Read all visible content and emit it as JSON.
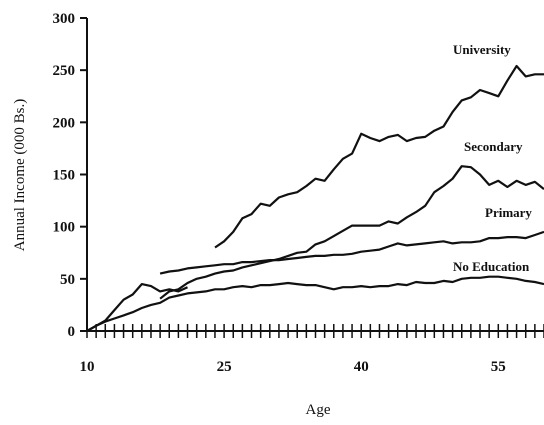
{
  "chart_data": {
    "type": "line",
    "title": "",
    "xlabel": "Age",
    "ylabel": "Annual Income  (000 Bs.)",
    "xlim": [
      10,
      60
    ],
    "ylim": [
      0,
      300
    ],
    "x_ticks": [
      10,
      25,
      40,
      55
    ],
    "y_ticks": [
      0,
      50,
      100,
      150,
      200,
      250,
      300
    ],
    "x_tick_labels": [
      "10",
      "25",
      "40",
      "55"
    ],
    "y_tick_labels": [
      "0",
      "50",
      "100",
      "150",
      "200",
      "250",
      "300"
    ],
    "grid": false,
    "legend": "none",
    "line_color": "#111111",
    "series": [
      {
        "name": "University",
        "x": [
          24,
          25,
          26,
          27,
          28,
          29,
          30,
          31,
          32,
          33,
          34,
          35,
          36,
          37,
          38,
          39,
          40,
          41,
          42,
          43,
          44,
          45,
          46,
          47,
          48,
          49,
          50,
          51,
          52,
          53,
          54,
          55,
          56,
          57,
          58,
          59,
          60
        ],
        "values": [
          80,
          86,
          95,
          108,
          112,
          122,
          120,
          128,
          131,
          133,
          139,
          146,
          144,
          155,
          165,
          170,
          189,
          185,
          182,
          186,
          188,
          182,
          185,
          186,
          192,
          196,
          210,
          221,
          224,
          231,
          228,
          225,
          240,
          254,
          244,
          246,
          246
        ]
      },
      {
        "name": "Secondary",
        "x": [
          18,
          19,
          20,
          21,
          22,
          23,
          24,
          25,
          26,
          27,
          28,
          29,
          30,
          31,
          32,
          33,
          34,
          35,
          36,
          37,
          38,
          39,
          40,
          41,
          42,
          43,
          44,
          45,
          46,
          47,
          48,
          49,
          50,
          51,
          52,
          53,
          54,
          55,
          56,
          57,
          58,
          59,
          60
        ],
        "values": [
          31,
          38,
          40,
          46,
          50,
          52,
          55,
          57,
          58,
          61,
          63,
          65,
          67,
          69,
          72,
          75,
          76,
          83,
          86,
          91,
          96,
          101,
          101,
          101,
          101,
          105,
          103,
          109,
          114,
          120,
          133,
          139,
          146,
          158,
          157,
          150,
          140,
          144,
          138,
          144,
          140,
          143,
          136
        ]
      },
      {
        "name": "Primary",
        "x": [
          18,
          19,
          20,
          21,
          22,
          23,
          24,
          25,
          26,
          27,
          28,
          29,
          30,
          31,
          32,
          33,
          34,
          35,
          36,
          37,
          38,
          39,
          40,
          41,
          42,
          43,
          44,
          45,
          46,
          47,
          48,
          49,
          50,
          51,
          52,
          53,
          54,
          55,
          56,
          57,
          58,
          59,
          60
        ],
        "values": [
          55,
          57,
          58,
          60,
          61,
          62,
          63,
          64,
          64,
          66,
          66,
          67,
          68,
          68,
          69,
          70,
          71,
          72,
          72,
          73,
          73,
          74,
          76,
          77,
          78,
          81,
          84,
          82,
          83,
          84,
          85,
          86,
          84,
          85,
          85,
          86,
          89,
          89,
          90,
          90,
          89,
          92,
          95
        ]
      },
      {
        "name": "No Education",
        "x": [
          10,
          11,
          12,
          13,
          14,
          15,
          16,
          17,
          18,
          19,
          20,
          21,
          22,
          23,
          24,
          25,
          26,
          27,
          28,
          29,
          30,
          31,
          32,
          33,
          34,
          35,
          36,
          37,
          38,
          39,
          40,
          41,
          42,
          43,
          44,
          45,
          46,
          47,
          48,
          49,
          50,
          51,
          52,
          53,
          54,
          55,
          56,
          57,
          58,
          59,
          60
        ],
        "values": [
          0,
          5,
          9,
          12,
          15,
          18,
          22,
          25,
          27,
          32,
          34,
          36,
          37,
          38,
          40,
          40,
          42,
          43,
          42,
          44,
          44,
          45,
          46,
          45,
          44,
          44,
          42,
          40,
          42,
          42,
          43,
          42,
          43,
          43,
          45,
          44,
          47,
          46,
          46,
          48,
          47,
          50,
          51,
          51,
          52,
          52,
          51,
          50,
          48,
          47,
          45
        ]
      },
      {
        "name": "",
        "x": [
          10,
          11,
          12,
          13,
          14,
          15,
          16,
          17,
          18,
          19,
          20,
          21
        ],
        "values": [
          0,
          5,
          10,
          20,
          30,
          35,
          45,
          43,
          38,
          40,
          38,
          42
        ]
      }
    ]
  }
}
